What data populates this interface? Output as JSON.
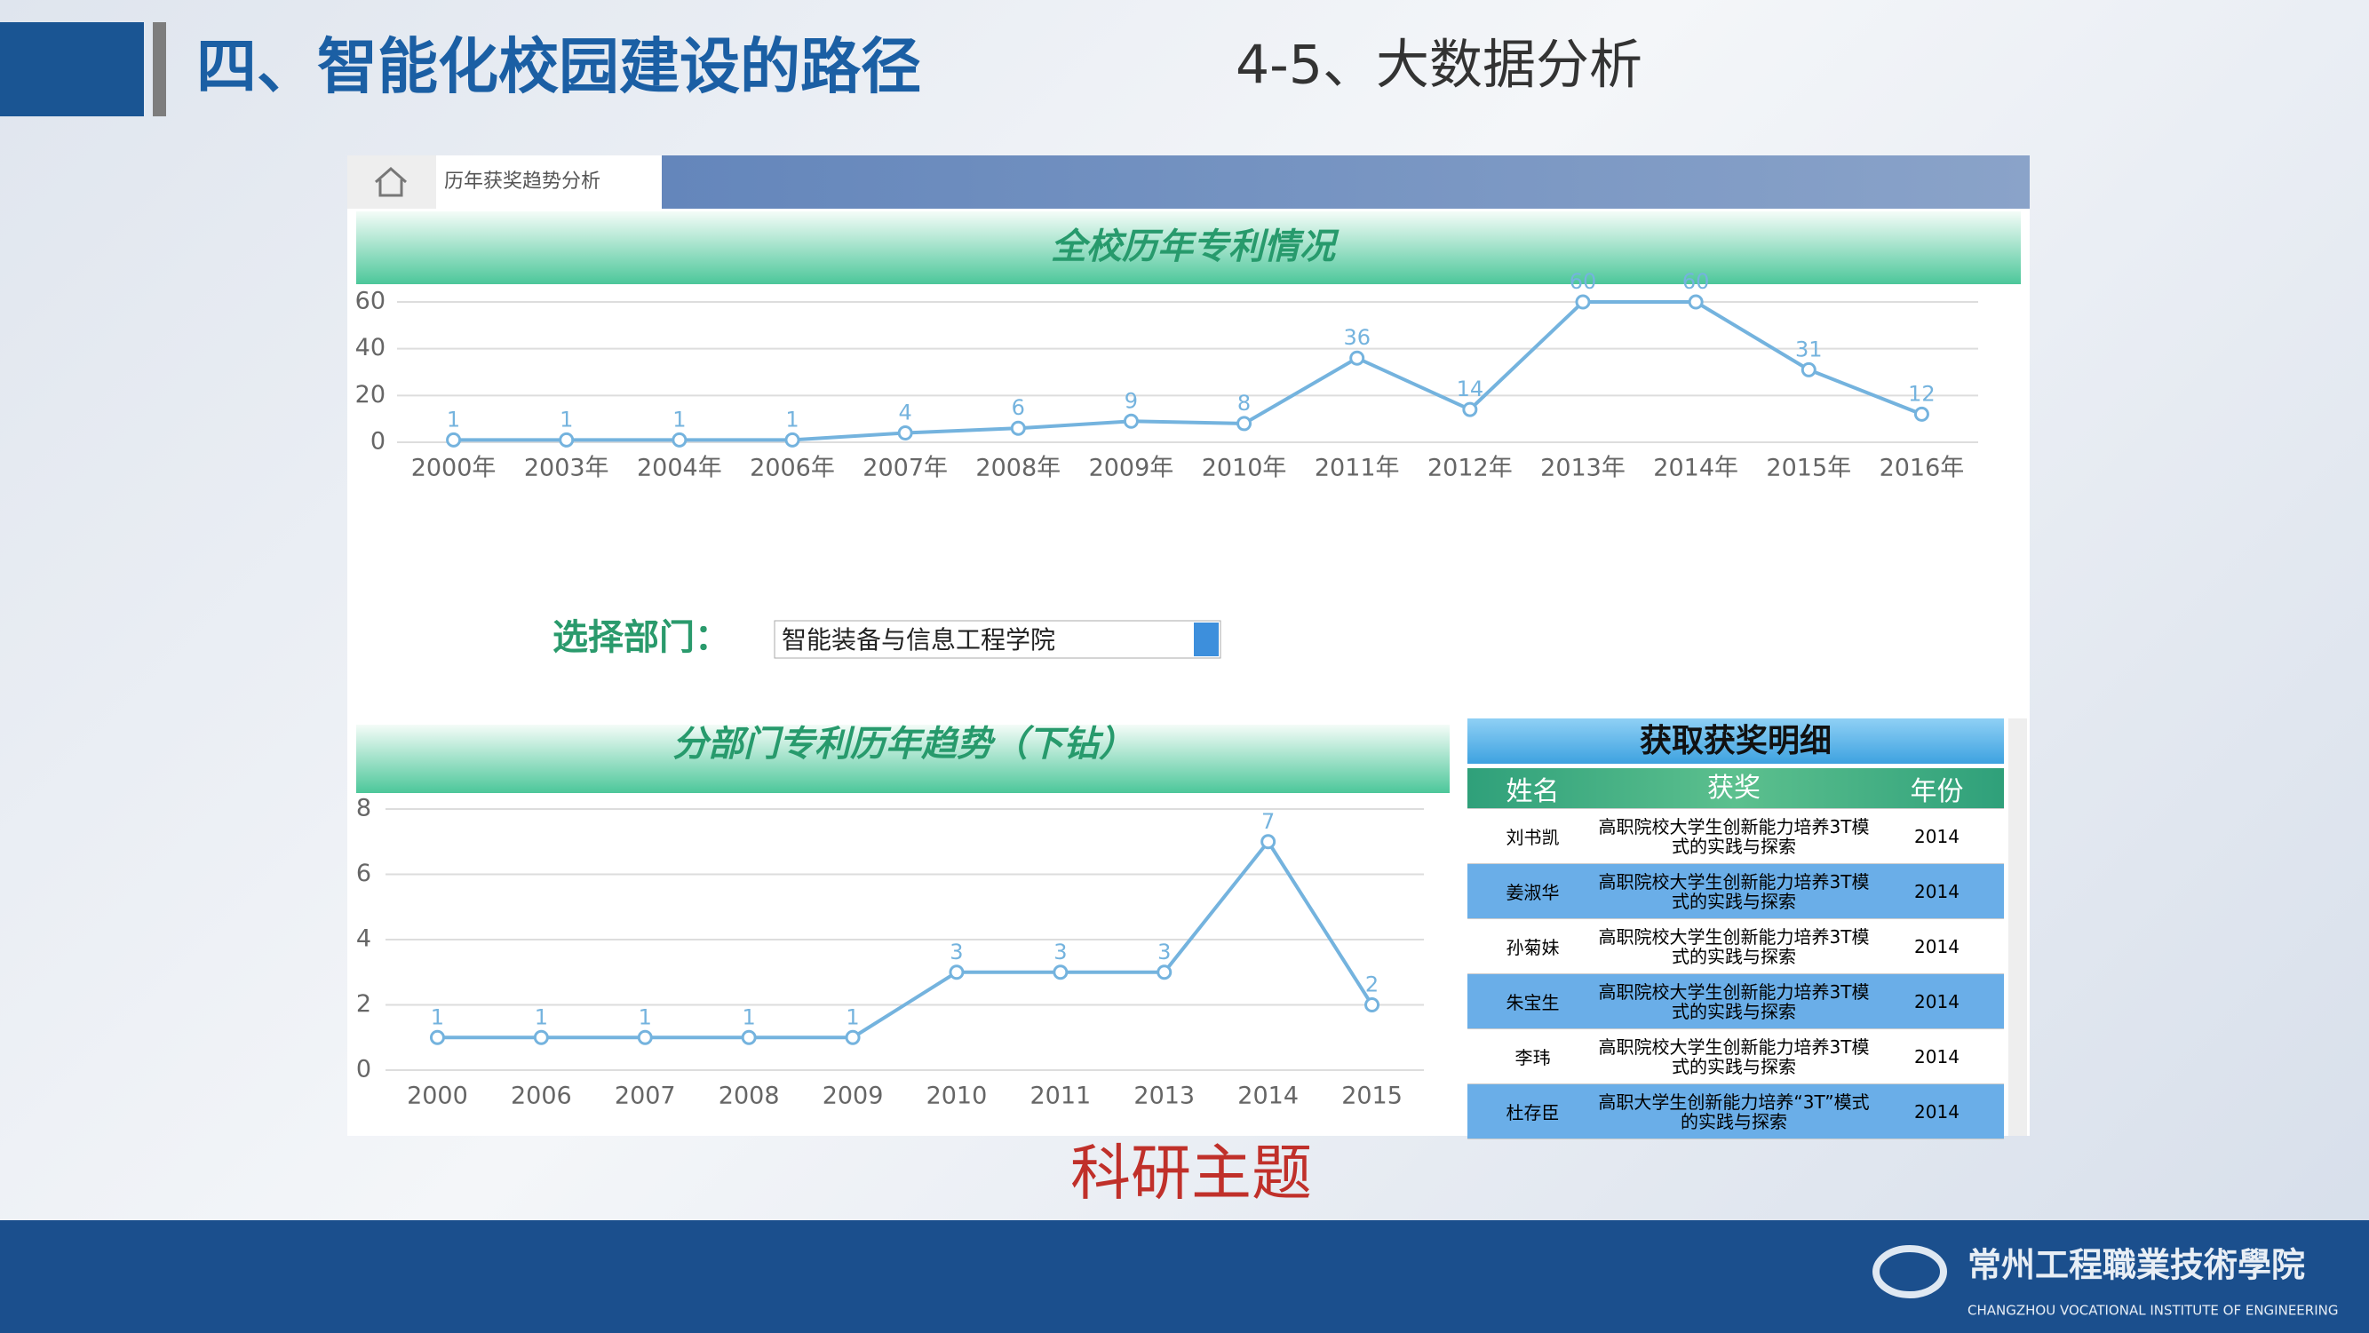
{
  "header": {
    "title": "四、智能化校园建设的路径",
    "subtitle": "4-5、大数据分析"
  },
  "tab": "历年获奖趋势分析",
  "chart_data": [
    {
      "type": "line",
      "title": "全校历年专利情况",
      "categories": [
        "2000年",
        "2003年",
        "2004年",
        "2006年",
        "2007年",
        "2008年",
        "2009年",
        "2010年",
        "2011年",
        "2012年",
        "2013年",
        "2014年",
        "2015年",
        "2016年"
      ],
      "values": [
        1,
        1,
        1,
        1,
        4,
        6,
        9,
        8,
        36,
        14,
        60,
        60,
        31,
        12
      ],
      "color": "#74b3de",
      "ylim": [
        0,
        60
      ],
      "yticks": [
        0,
        20,
        40,
        60
      ],
      "grid": true
    },
    {
      "type": "line",
      "title": "分部门专利历年趋势（下钻）",
      "categories": [
        "2000",
        "2006",
        "2007",
        "2008",
        "2009",
        "2010",
        "2011",
        "2013",
        "2014",
        "2015"
      ],
      "values": [
        1,
        1,
        1,
        1,
        1,
        3,
        3,
        3,
        7,
        2
      ],
      "color": "#74b3de",
      "ylim": [
        0,
        8
      ],
      "yticks": [
        0,
        2,
        4,
        6,
        8
      ],
      "grid": true
    }
  ],
  "selector": {
    "label": "选择部门：",
    "value": "智能装备与信息工程学院"
  },
  "table": {
    "title": "获取获奖明细",
    "columns": [
      "姓名",
      "获奖",
      "年份"
    ],
    "rows": [
      [
        "刘书凯",
        "高职院校大学生创新能力培养3T模式的实践与探索",
        2014
      ],
      [
        "姜淑华",
        "高职院校大学生创新能力培养3T模式的实践与探索",
        2014
      ],
      [
        "孙菊妹",
        "高职院校大学生创新能力培养3T模式的实践与探索",
        2014
      ],
      [
        "朱宝生",
        "高职院校大学生创新能力培养3T模式的实践与探索",
        2014
      ],
      [
        "李玮",
        "高职院校大学生创新能力培养3T模式的实践与探索",
        2014
      ],
      [
        "杜存臣",
        "高职大学生创新能力培养“3T”模式的实践与探索",
        2014
      ]
    ]
  },
  "footer": {
    "theme": "科研主题",
    "school": "常州工程職業技術學院",
    "school_en": "CHANGZHOU VOCATIONAL INSTITUTE OF ENGINEERING"
  }
}
